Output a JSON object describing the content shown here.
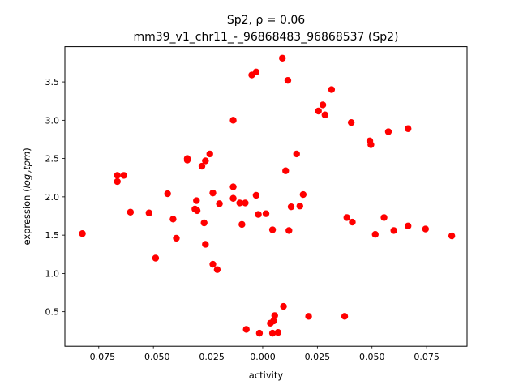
{
  "chart_data": {
    "type": "scatter",
    "title_line1": "Sp2, ρ = 0.06",
    "title_line2": "mm39_v1_chr11_-_96868483_96868537 (Sp2)",
    "xlabel": "activity",
    "ylabel_prefix": "expression (",
    "ylabel_log": "log",
    "ylabel_sub": "2",
    "ylabel_tpm": "tpm",
    "ylabel_suffix": ")",
    "xlim": [
      -0.0905,
      0.0935
    ],
    "ylim": [
      0.05,
      3.96
    ],
    "xticks": [
      {
        "value": -0.075,
        "label": "−0.075"
      },
      {
        "value": -0.05,
        "label": "−0.050"
      },
      {
        "value": -0.025,
        "label": "−0.025"
      },
      {
        "value": 0.0,
        "label": "0.000"
      },
      {
        "value": 0.025,
        "label": "0.025"
      },
      {
        "value": 0.05,
        "label": "0.050"
      },
      {
        "value": 0.075,
        "label": "0.075"
      }
    ],
    "yticks": [
      {
        "value": 0.5,
        "label": "0.5"
      },
      {
        "value": 1.0,
        "label": "1.0"
      },
      {
        "value": 1.5,
        "label": "1.5"
      },
      {
        "value": 2.0,
        "label": "2.0"
      },
      {
        "value": 2.5,
        "label": "2.5"
      },
      {
        "value": 3.0,
        "label": "3.0"
      },
      {
        "value": 3.5,
        "label": "3.5"
      }
    ],
    "marker_color": "#ff0000",
    "points": [
      {
        "x": -0.0825,
        "y": 1.52
      },
      {
        "x": -0.0665,
        "y": 2.28
      },
      {
        "x": -0.0665,
        "y": 2.2
      },
      {
        "x": -0.0635,
        "y": 2.28
      },
      {
        "x": -0.0605,
        "y": 1.8
      },
      {
        "x": -0.052,
        "y": 1.79
      },
      {
        "x": -0.049,
        "y": 1.2
      },
      {
        "x": -0.0435,
        "y": 2.04
      },
      {
        "x": -0.041,
        "y": 1.71
      },
      {
        "x": -0.0395,
        "y": 1.46
      },
      {
        "x": -0.0345,
        "y": 2.5
      },
      {
        "x": -0.0345,
        "y": 2.48
      },
      {
        "x": -0.031,
        "y": 1.84
      },
      {
        "x": -0.0303,
        "y": 1.95
      },
      {
        "x": -0.03,
        "y": 1.82
      },
      {
        "x": -0.0278,
        "y": 2.4
      },
      {
        "x": -0.0268,
        "y": 1.66
      },
      {
        "x": -0.0262,
        "y": 2.47
      },
      {
        "x": -0.0262,
        "y": 1.38
      },
      {
        "x": -0.0242,
        "y": 2.56
      },
      {
        "x": -0.0228,
        "y": 2.05
      },
      {
        "x": -0.0228,
        "y": 1.12
      },
      {
        "x": -0.0208,
        "y": 1.05
      },
      {
        "x": -0.0198,
        "y": 1.91
      },
      {
        "x": -0.0135,
        "y": 3.0
      },
      {
        "x": -0.0135,
        "y": 2.13
      },
      {
        "x": -0.0135,
        "y": 1.98
      },
      {
        "x": -0.0105,
        "y": 1.92
      },
      {
        "x": -0.0095,
        "y": 1.64
      },
      {
        "x": -0.008,
        "y": 1.92
      },
      {
        "x": -0.0075,
        "y": 0.27
      },
      {
        "x": -0.005,
        "y": 3.59
      },
      {
        "x": -0.003,
        "y": 3.63
      },
      {
        "x": -0.003,
        "y": 2.02
      },
      {
        "x": -0.002,
        "y": 1.77
      },
      {
        "x": -0.0015,
        "y": 0.22
      },
      {
        "x": 0.0015,
        "y": 1.78
      },
      {
        "x": 0.0035,
        "y": 0.35
      },
      {
        "x": 0.0045,
        "y": 1.57
      },
      {
        "x": 0.0045,
        "y": 0.22
      },
      {
        "x": 0.005,
        "y": 0.38
      },
      {
        "x": 0.0055,
        "y": 0.45
      },
      {
        "x": 0.007,
        "y": 0.23
      },
      {
        "x": 0.009,
        "y": 3.81
      },
      {
        "x": 0.0095,
        "y": 0.57
      },
      {
        "x": 0.0105,
        "y": 2.34
      },
      {
        "x": 0.0115,
        "y": 3.52
      },
      {
        "x": 0.012,
        "y": 1.56
      },
      {
        "x": 0.013,
        "y": 1.87
      },
      {
        "x": 0.0155,
        "y": 2.56
      },
      {
        "x": 0.017,
        "y": 1.88
      },
      {
        "x": 0.0185,
        "y": 2.03
      },
      {
        "x": 0.021,
        "y": 0.44
      },
      {
        "x": 0.0255,
        "y": 3.12
      },
      {
        "x": 0.0275,
        "y": 3.2
      },
      {
        "x": 0.0285,
        "y": 3.07
      },
      {
        "x": 0.0315,
        "y": 3.4
      },
      {
        "x": 0.0375,
        "y": 0.44
      },
      {
        "x": 0.0385,
        "y": 1.73
      },
      {
        "x": 0.0405,
        "y": 2.97
      },
      {
        "x": 0.041,
        "y": 1.67
      },
      {
        "x": 0.049,
        "y": 2.73
      },
      {
        "x": 0.0495,
        "y": 2.68
      },
      {
        "x": 0.0515,
        "y": 1.51
      },
      {
        "x": 0.0555,
        "y": 1.73
      },
      {
        "x": 0.0575,
        "y": 2.85
      },
      {
        "x": 0.06,
        "y": 1.56
      },
      {
        "x": 0.0665,
        "y": 2.89
      },
      {
        "x": 0.0665,
        "y": 1.62
      },
      {
        "x": 0.0745,
        "y": 1.58
      },
      {
        "x": 0.0865,
        "y": 1.49
      }
    ]
  }
}
